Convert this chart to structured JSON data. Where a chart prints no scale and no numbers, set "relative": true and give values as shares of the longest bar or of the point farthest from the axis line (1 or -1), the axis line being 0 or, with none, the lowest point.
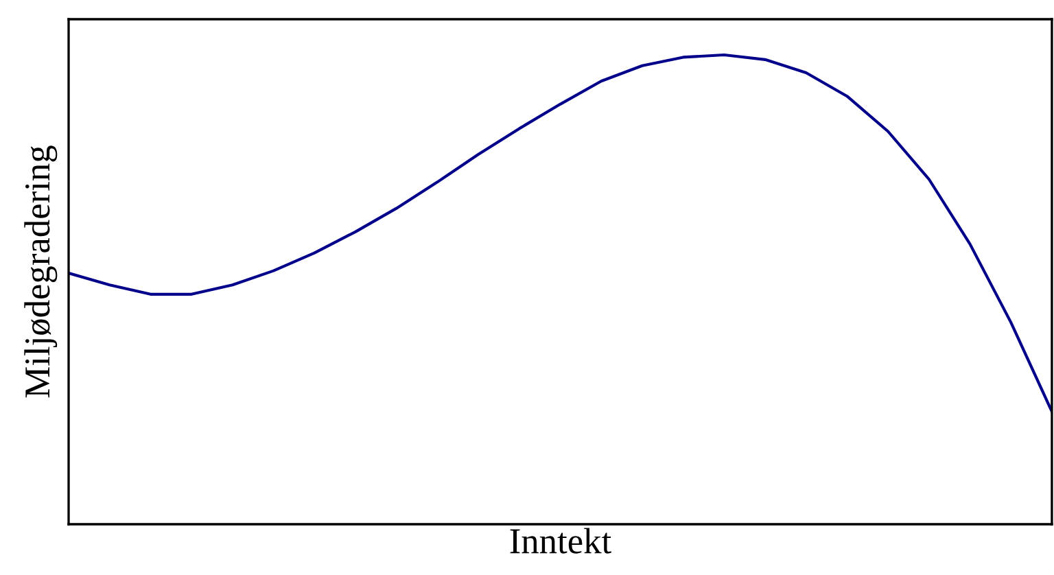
{
  "chart_data": {
    "type": "line",
    "relative": true,
    "xlabel": "Inntekt",
    "ylabel": "Miljødegradering",
    "categories": [
      null,
      null,
      null,
      null,
      null,
      null,
      null,
      null,
      null,
      null,
      null,
      null,
      null,
      null,
      null,
      null,
      null,
      null,
      null,
      null,
      null,
      null,
      null,
      null,
      null
    ],
    "series": [
      {
        "color": "#00008b",
        "values": [
          0.535,
          0.51,
          0.49,
          0.49,
          0.51,
          0.54,
          0.578,
          0.623,
          0.673,
          0.729,
          0.788,
          0.843,
          0.895,
          0.944,
          0.977,
          0.995,
          1.0,
          0.99,
          0.962,
          0.912,
          0.837,
          0.735,
          0.597,
          0.43,
          0.24
        ]
      }
    ],
    "marker": "none",
    "line_style": "solid"
  }
}
